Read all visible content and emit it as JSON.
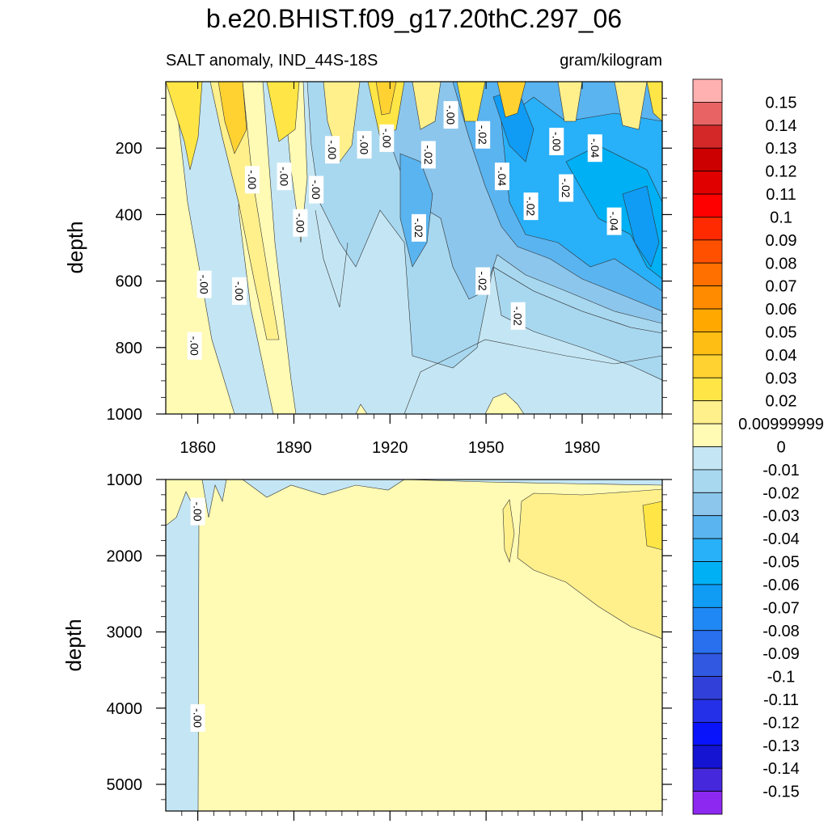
{
  "chart_data": [
    {
      "type": "heatmap",
      "panel": "upper",
      "title": "b.e20.BHIST.f09_g17.20thC.297_06",
      "left_string": "SALT anomaly, IND_44S-18S",
      "right_string": "gram/kilogram",
      "xlabel": "",
      "ylabel": "depth",
      "xlim": [
        1850,
        2005
      ],
      "ylim": [
        1000,
        0
      ],
      "x_ticks": [
        "1860",
        "1890",
        "1920",
        "1950",
        "1980"
      ],
      "x_tick_values": [
        1860,
        1890,
        1920,
        1950,
        1980
      ],
      "y_ticks": [
        "200",
        "400",
        "600",
        "800",
        "1000"
      ],
      "y_tick_values": [
        200,
        400,
        600,
        800,
        1000
      ],
      "contour_labels": [
        {
          "text": "-.00",
          "x": 1939,
          "y": 100
        },
        {
          "text": "-.02",
          "x": 1949,
          "y": 160
        },
        {
          "text": "-.00",
          "x": 1902,
          "y": 205
        },
        {
          "text": "-.00",
          "x": 1912,
          "y": 190
        },
        {
          "text": "-.00",
          "x": 1919,
          "y": 170
        },
        {
          "text": "-.02",
          "x": 1932,
          "y": 220
        },
        {
          "text": "-.00",
          "x": 1972,
          "y": 180
        },
        {
          "text": "-.04",
          "x": 1984,
          "y": 200
        },
        {
          "text": "-.00",
          "x": 1877,
          "y": 295
        },
        {
          "text": "-.00",
          "x": 1887,
          "y": 285
        },
        {
          "text": "-.00",
          "x": 1897,
          "y": 325
        },
        {
          "text": "-.04",
          "x": 1955,
          "y": 285
        },
        {
          "text": "-.02",
          "x": 1975,
          "y": 320
        },
        {
          "text": "-.02",
          "x": 1964,
          "y": 375
        },
        {
          "text": "-.00",
          "x": 1892,
          "y": 425
        },
        {
          "text": "-.02",
          "x": 1929,
          "y": 440
        },
        {
          "text": "-.04",
          "x": 1990,
          "y": 420
        },
        {
          "text": "-.00",
          "x": 1862,
          "y": 610
        },
        {
          "text": "-.00",
          "x": 1873,
          "y": 630
        },
        {
          "text": "-.02",
          "x": 1949,
          "y": 600
        },
        {
          "text": "-.02",
          "x": 1960,
          "y": 705
        },
        {
          "text": "-.00",
          "x": 1859,
          "y": 795
        }
      ]
    },
    {
      "type": "heatmap",
      "panel": "lower",
      "xlabel": "",
      "ylabel": "depth",
      "xlim": [
        1850,
        2005
      ],
      "ylim": [
        1000,
        5350
      ],
      "y_ticks": [
        "1000",
        "2000",
        "3000",
        "4000",
        "5000"
      ],
      "y_tick_values": [
        1000,
        2000,
        3000,
        4000,
        5000
      ],
      "x_tick_values": [
        1860,
        1890,
        1920,
        1950,
        1980
      ],
      "contour_labels": [
        {
          "text": "-.00",
          "x": 1860,
          "y": 1420
        },
        {
          "text": "-.00",
          "x": 1860,
          "y": 4130
        }
      ]
    }
  ],
  "colorbar": {
    "units": "gram/kilogram",
    "labels": [
      "0.15",
      "0.14",
      "0.13",
      "0.12",
      "0.11",
      "0.1",
      "0.09",
      "0.08",
      "0.07",
      "0.06",
      "0.05",
      "0.04",
      "0.03",
      "0.02",
      "0.00999999",
      "0",
      "-0.01",
      "-0.02",
      "-0.03",
      "-0.04",
      "-0.05",
      "-0.06",
      "-0.07",
      "-0.08",
      "-0.09",
      "-0.1",
      "-0.11",
      "-0.12",
      "-0.13",
      "-0.14",
      "-0.15"
    ],
    "colors": [
      "#ffb0b0",
      "#e86464",
      "#d42828",
      "#cc0000",
      "#e00000",
      "#ff0000",
      "#ff2a00",
      "#ff5000",
      "#ff7000",
      "#ff8c00",
      "#ffa800",
      "#ffbe14",
      "#ffd232",
      "#ffe646",
      "#fff08c",
      "#fffab4",
      "#c4e6f4",
      "#a8d8f0",
      "#8cc6ec",
      "#5ab4f0",
      "#28b0f8",
      "#00b0f4",
      "#109cf4",
      "#2088f4",
      "#2870ee",
      "#3058e0",
      "#3040d8",
      "#2430e8",
      "#0a14fa",
      "#1414d2",
      "#4628dc",
      "#8c28f0"
    ]
  }
}
